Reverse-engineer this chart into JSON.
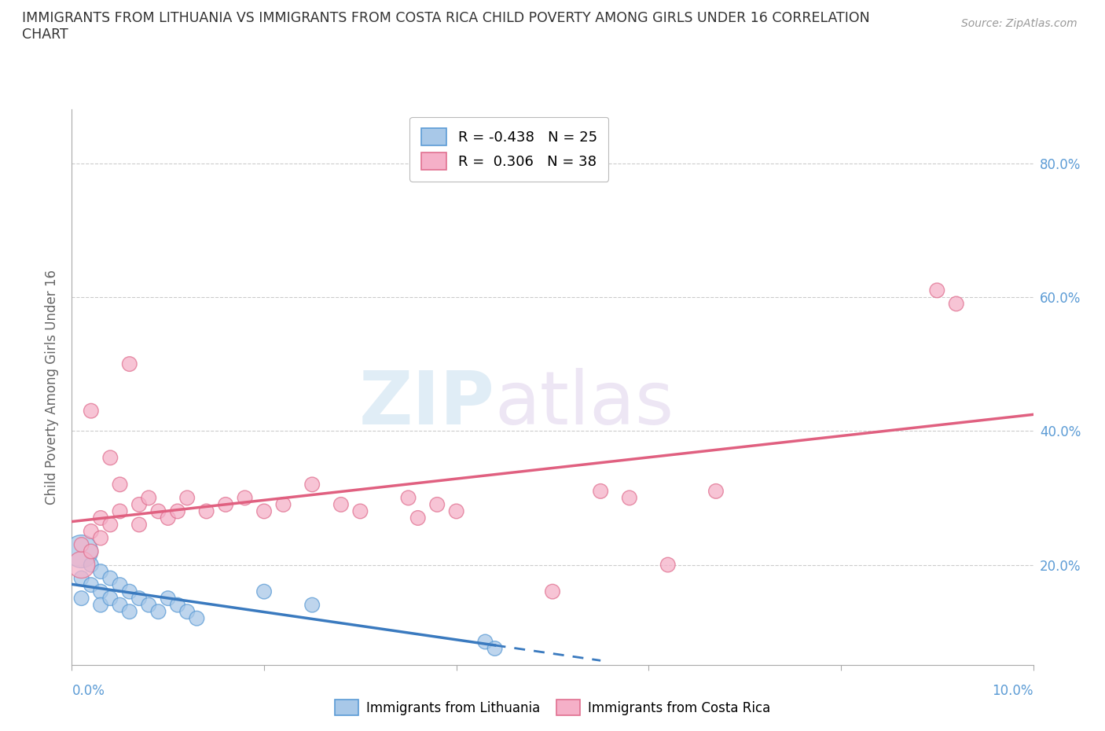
{
  "title_line1": "IMMIGRANTS FROM LITHUANIA VS IMMIGRANTS FROM COSTA RICA CHILD POVERTY AMONG GIRLS UNDER 16 CORRELATION",
  "title_line2": "CHART",
  "source": "Source: ZipAtlas.com",
  "ylabel": "Child Poverty Among Girls Under 16",
  "xmin": 0.0,
  "xmax": 0.1,
  "ymin": 0.05,
  "ymax": 0.88,
  "y_tick_positions": [
    0.2,
    0.4,
    0.6,
    0.8
  ],
  "y_tick_labels": [
    "20.0%",
    "40.0%",
    "60.0%",
    "80.0%"
  ],
  "lith_color_fill": "#a8c8e8",
  "lith_color_edge": "#5b9bd5",
  "cr_color_fill": "#f5b0c8",
  "cr_color_edge": "#e07090",
  "lith_line_color": "#3a7abf",
  "cr_line_color": "#e06080",
  "legend_lith": "R = -0.438   N = 25",
  "legend_cr": "R =  0.306   N = 38",
  "legend_label_lith": "Immigrants from Lithuania",
  "legend_label_cr": "Immigrants from Costa Rica",
  "watermark_zip": "ZIP",
  "watermark_atlas": "atlas",
  "lith_x": [
    0.001,
    0.001,
    0.001,
    0.002,
    0.002,
    0.003,
    0.003,
    0.003,
    0.004,
    0.004,
    0.005,
    0.005,
    0.006,
    0.006,
    0.007,
    0.008,
    0.009,
    0.01,
    0.011,
    0.012,
    0.013,
    0.02,
    0.025,
    0.043,
    0.044
  ],
  "lith_y": [
    0.22,
    0.18,
    0.15,
    0.2,
    0.17,
    0.19,
    0.16,
    0.14,
    0.18,
    0.15,
    0.17,
    0.14,
    0.16,
    0.13,
    0.15,
    0.14,
    0.13,
    0.15,
    0.14,
    0.13,
    0.12,
    0.16,
    0.14,
    0.085,
    0.075
  ],
  "lith_sizes_raw": [
    1,
    1,
    1,
    1,
    1,
    1,
    1,
    1,
    1,
    1,
    1,
    1,
    1,
    1,
    1,
    1,
    1,
    1,
    1,
    1,
    1,
    1,
    1,
    1,
    1
  ],
  "lith_big_indices": [
    0
  ],
  "cr_x": [
    0.001,
    0.001,
    0.002,
    0.002,
    0.002,
    0.003,
    0.003,
    0.004,
    0.004,
    0.005,
    0.005,
    0.006,
    0.007,
    0.007,
    0.008,
    0.009,
    0.01,
    0.011,
    0.012,
    0.014,
    0.016,
    0.018,
    0.02,
    0.022,
    0.025,
    0.028,
    0.03,
    0.035,
    0.036,
    0.038,
    0.04,
    0.05,
    0.055,
    0.058,
    0.062,
    0.067,
    0.09,
    0.092
  ],
  "cr_y": [
    0.2,
    0.23,
    0.22,
    0.25,
    0.43,
    0.24,
    0.27,
    0.26,
    0.36,
    0.28,
    0.32,
    0.5,
    0.29,
    0.26,
    0.3,
    0.28,
    0.27,
    0.28,
    0.3,
    0.28,
    0.29,
    0.3,
    0.28,
    0.29,
    0.32,
    0.29,
    0.28,
    0.3,
    0.27,
    0.29,
    0.28,
    0.16,
    0.31,
    0.3,
    0.2,
    0.31,
    0.61,
    0.59
  ],
  "grid_color": "#cccccc",
  "axis_label_color": "#5b9bd5",
  "ylabel_color": "#666666"
}
